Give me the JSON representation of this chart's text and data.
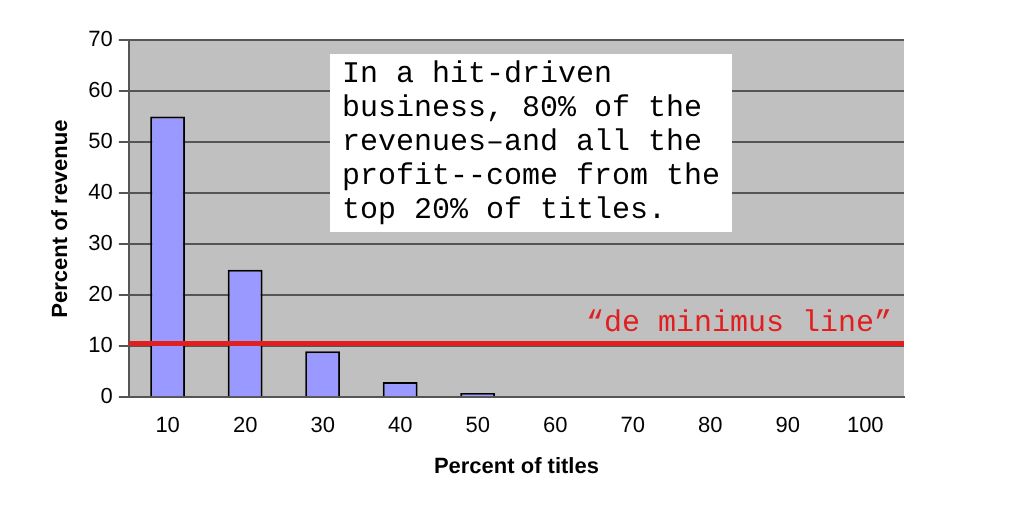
{
  "chart_data": {
    "type": "bar",
    "xlabel": "Percent of titles",
    "ylabel": "Percent of revenue",
    "categories": [
      "10",
      "20",
      "30",
      "40",
      "50",
      "60",
      "70",
      "80",
      "90",
      "100"
    ],
    "values": [
      55,
      25,
      9,
      3,
      0.8,
      0,
      0,
      0,
      0,
      0
    ],
    "color": "#9999ff",
    "ylim": [
      0,
      70
    ],
    "yticks": [
      0,
      10,
      20,
      30,
      40,
      50,
      60,
      70
    ],
    "grid": "y",
    "legend": false,
    "ref_lines": [
      {
        "axis": "y",
        "value": 10.5,
        "label": "“de minimus line”",
        "color": "#e02020"
      }
    ],
    "annotations": [
      "In a hit-driven\nbusiness, 80% of the\nrevenues–and all the\nprofit--come from the\ntop 20% of titles."
    ]
  }
}
